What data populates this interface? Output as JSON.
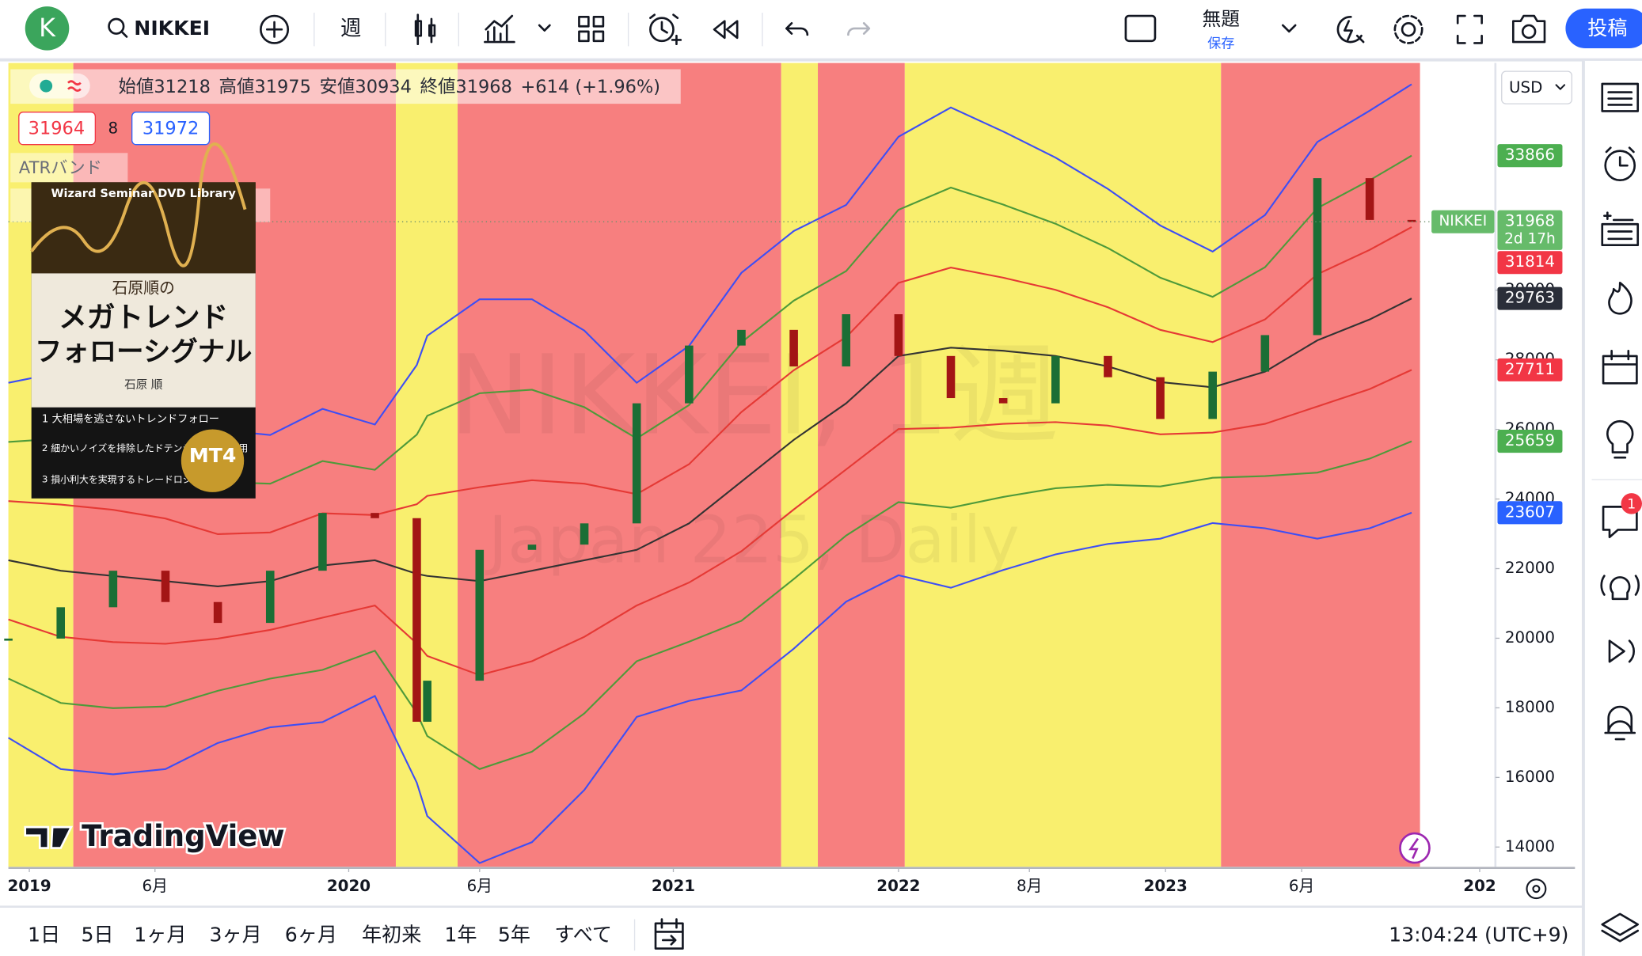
{
  "toolbar": {
    "avatar": "K",
    "symbol": "NIKKEI",
    "interval": "週",
    "title": "無題",
    "save": "保存",
    "publish": "投稿",
    "notifications": "1"
  },
  "legend": {
    "items": [
      "始値31218",
      "高値31975",
      "安値30934",
      "終値31968",
      "+614 (+1.96%)"
    ],
    "bid": "31964",
    "spread": "8",
    "ask": "31972",
    "indicator": "ATRバンド"
  },
  "watermark": {
    "symbol": "NIKKEI, 1週",
    "description": "Japan 225, Daily"
  },
  "ad": {
    "series": "Wizard Seminar DVD Library",
    "author_line": "石原順の",
    "title_1": "メガトレンド",
    "title_2": "フォローシグナル",
    "author": "石原 順",
    "points": [
      "大相場を逃さないトレンドフォロー",
      "細かいノイズを排除したドテンシステムを採用",
      "損小利大を実現するトレードロジック"
    ],
    "badge": "MT4"
  },
  "logo": "TradingView",
  "currency": "USD",
  "ranges": [
    "1日",
    "5日",
    "1ヶ月",
    "3ヶ月",
    "6ヶ月",
    "年初来",
    "1年",
    "5年",
    "すべて"
  ],
  "clock": "13:04:24 (UTC+9)",
  "chart_data": {
    "type": "candlestick",
    "xlim": [
      0,
      284
    ],
    "ylim": [
      13430,
      36530
    ],
    "xticks": [
      {
        "value": 4,
        "label": "2019"
      },
      {
        "value": 28,
        "label": "6月"
      },
      {
        "value": 65,
        "label": "2020"
      },
      {
        "value": 90,
        "label": "6月"
      },
      {
        "value": 127,
        "label": "2021"
      },
      {
        "value": 170,
        "label": "2022"
      },
      {
        "value": 195,
        "label": "8月"
      },
      {
        "value": 221,
        "label": "2023"
      },
      {
        "value": 247,
        "label": "6月"
      },
      {
        "value": 281,
        "label": "202"
      }
    ],
    "yticks": [
      14000,
      16000,
      18000,
      20000,
      22000,
      24000,
      26000,
      28000,
      30000
    ],
    "regions": [
      {
        "start": 0,
        "end": 12.4,
        "color": "#f9ef6e"
      },
      {
        "start": 12.4,
        "end": 74,
        "color": "#f77f7f"
      },
      {
        "start": 74,
        "end": 85.8,
        "color": "#f9ef6e"
      },
      {
        "start": 85.8,
        "end": 147.6,
        "color": "#f77f7f"
      },
      {
        "start": 147.6,
        "end": 154.6,
        "color": "#f9ef6e"
      },
      {
        "start": 154.6,
        "end": 171.2,
        "color": "#f77f7f"
      },
      {
        "start": 171.2,
        "end": 231.6,
        "color": "#f9ef6e"
      },
      {
        "start": 231.6,
        "end": 269.6,
        "color": "#f77f7f"
      }
    ],
    "x": [
      0,
      10,
      20,
      30,
      40,
      50,
      60,
      70,
      78,
      80,
      90,
      100,
      110,
      120,
      130,
      140,
      150,
      160,
      170,
      180,
      190,
      200,
      210,
      220,
      230,
      240,
      250,
      260,
      268
    ],
    "close": [
      19990,
      20890,
      21940,
      21040,
      20440,
      21940,
      23600,
      23450,
      17600,
      18780,
      22540,
      22690,
      23300,
      26750,
      28410,
      28860,
      27810,
      29310,
      28110,
      26900,
      26750,
      28110,
      27500,
      26300,
      27660,
      28710,
      33220,
      32020,
      31968
    ],
    "up_color": "#1b6e35",
    "down_color": "#a31515",
    "last": {
      "name": "NIKKEI",
      "countdown": "2d 17h",
      "color": "#66bb6a"
    },
    "bands": [
      {
        "color": "#3d4ef5",
        "values": [
          27340,
          27640,
          27490,
          27040,
          25990,
          25840,
          26590,
          26140,
          27850,
          28690,
          29740,
          29740,
          28840,
          27340,
          28400,
          30500,
          31700,
          32450,
          34410,
          35250,
          34560,
          33810,
          32910,
          31860,
          31110,
          32160,
          34260,
          35160,
          35918
        ]
      },
      {
        "color": "#4e9a3a",
        "label_color": "#4caf50",
        "values": [
          25640,
          25740,
          25590,
          25240,
          24490,
          24440,
          25090,
          24840,
          25850,
          26390,
          27040,
          27140,
          26640,
          25740,
          26700,
          28500,
          29700,
          30550,
          32310,
          32950,
          32460,
          31910,
          31210,
          30360,
          29810,
          30660,
          32360,
          33160,
          33866
        ]
      },
      {
        "color": "#e53935",
        "label_color": "#f23645",
        "values": [
          23940,
          23840,
          23690,
          23440,
          22990,
          23040,
          23590,
          23540,
          23850,
          24090,
          24340,
          24540,
          24440,
          24140,
          25000,
          26500,
          27700,
          28650,
          30210,
          30650,
          30360,
          30010,
          29510,
          28860,
          28510,
          29160,
          30460,
          31160,
          31814
        ]
      },
      {
        "color": "#333333",
        "label_color": "#2a2e39",
        "values": [
          22240,
          21940,
          21790,
          21640,
          21490,
          21640,
          22090,
          22240,
          21850,
          21790,
          21640,
          21940,
          22240,
          22540,
          23300,
          24500,
          25700,
          26750,
          28110,
          28350,
          28260,
          28110,
          27810,
          27360,
          27210,
          27660,
          28560,
          29160,
          29763
        ]
      },
      {
        "color": "#e53935",
        "label_color": "#f23645",
        "values": [
          20540,
          20040,
          19890,
          19840,
          19990,
          20240,
          20590,
          20940,
          19850,
          19490,
          18940,
          19340,
          20040,
          20940,
          21600,
          22500,
          23700,
          24850,
          26010,
          26050,
          26160,
          26210,
          26110,
          25860,
          25910,
          26160,
          26660,
          27160,
          27711
        ]
      },
      {
        "color": "#4e9a3a",
        "label_color": "#4caf50",
        "values": [
          18840,
          18140,
          17990,
          18040,
          18490,
          18840,
          19090,
          19640,
          17850,
          17190,
          16240,
          16740,
          17840,
          19340,
          19900,
          20500,
          21700,
          22950,
          23910,
          23750,
          24060,
          24310,
          24410,
          24360,
          24610,
          24660,
          24760,
          25160,
          25659
        ]
      },
      {
        "color": "#3d4ef5",
        "label_color": "#2962ff",
        "values": [
          17140,
          16240,
          16090,
          16240,
          16990,
          17440,
          17590,
          18340,
          15850,
          14890,
          13540,
          14140,
          15640,
          17740,
          18200,
          18500,
          19700,
          21050,
          21810,
          21450,
          21960,
          22410,
          22710,
          22860,
          23310,
          23160,
          22860,
          23160,
          23607
        ]
      }
    ]
  }
}
